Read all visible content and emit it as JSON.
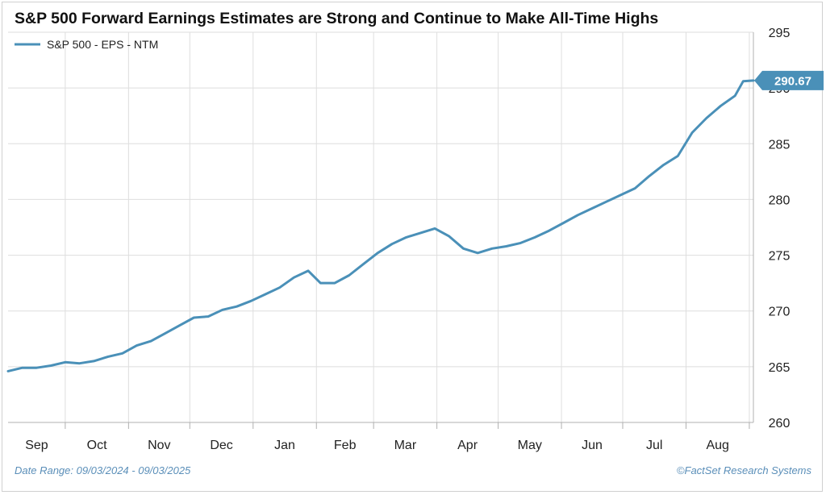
{
  "chart_data": {
    "type": "line",
    "title": "S&P 500 Forward Earnings Estimates are Strong and Continue to Make All-Time Highs",
    "xlabel": "",
    "ylabel": "",
    "ylim": [
      260,
      295
    ],
    "xlim": [
      "2024-09-03",
      "2025-09-03"
    ],
    "y_ticks": [
      260,
      265,
      270,
      275,
      280,
      285,
      290,
      295
    ],
    "y_axis_position": "right",
    "grid": true,
    "legend": "top-left",
    "months": [
      {
        "label": "Sep",
        "start": "2024-09-01"
      },
      {
        "label": "Oct",
        "start": "2024-10-01"
      },
      {
        "label": "Nov",
        "start": "2024-11-01"
      },
      {
        "label": "Dec",
        "start": "2024-12-01"
      },
      {
        "label": "Jan",
        "start": "2025-01-01"
      },
      {
        "label": "Feb",
        "start": "2025-02-01"
      },
      {
        "label": "Mar",
        "start": "2025-03-01"
      },
      {
        "label": "Apr",
        "start": "2025-04-01"
      },
      {
        "label": "May",
        "start": "2025-05-01"
      },
      {
        "label": "Jun",
        "start": "2025-06-01"
      },
      {
        "label": "Jul",
        "start": "2025-07-01"
      },
      {
        "label": "Aug",
        "start": "2025-08-01"
      },
      {
        "label": "",
        "start": "2025-09-01"
      }
    ],
    "series": [
      {
        "name": "S&P 500 - EPS - NTM",
        "color": "#4a90b8",
        "last_value_label": "290.67",
        "points": [
          [
            "2024-09-03",
            264.6
          ],
          [
            "2024-09-10",
            264.9
          ],
          [
            "2024-09-17",
            264.9
          ],
          [
            "2024-09-24",
            265.1
          ],
          [
            "2024-10-01",
            265.4
          ],
          [
            "2024-10-08",
            265.3
          ],
          [
            "2024-10-15",
            265.5
          ],
          [
            "2024-10-22",
            265.9
          ],
          [
            "2024-10-29",
            266.2
          ],
          [
            "2024-11-05",
            266.9
          ],
          [
            "2024-11-12",
            267.3
          ],
          [
            "2024-11-19",
            268.0
          ],
          [
            "2024-11-26",
            268.7
          ],
          [
            "2024-12-03",
            269.4
          ],
          [
            "2024-12-10",
            269.5
          ],
          [
            "2024-12-17",
            270.1
          ],
          [
            "2024-12-24",
            270.4
          ],
          [
            "2024-12-31",
            270.9
          ],
          [
            "2025-01-07",
            271.5
          ],
          [
            "2025-01-14",
            272.1
          ],
          [
            "2025-01-21",
            273.0
          ],
          [
            "2025-01-28",
            273.6
          ],
          [
            "2025-02-03",
            272.5
          ],
          [
            "2025-02-10",
            272.5
          ],
          [
            "2025-02-17",
            273.2
          ],
          [
            "2025-02-24",
            274.2
          ],
          [
            "2025-03-03",
            275.2
          ],
          [
            "2025-03-10",
            276.0
          ],
          [
            "2025-03-17",
            276.6
          ],
          [
            "2025-03-24",
            277.0
          ],
          [
            "2025-03-31",
            277.4
          ],
          [
            "2025-04-07",
            276.7
          ],
          [
            "2025-04-14",
            275.6
          ],
          [
            "2025-04-21",
            275.2
          ],
          [
            "2025-04-28",
            275.6
          ],
          [
            "2025-05-05",
            275.8
          ],
          [
            "2025-05-12",
            276.1
          ],
          [
            "2025-05-19",
            276.6
          ],
          [
            "2025-05-26",
            277.2
          ],
          [
            "2025-06-02",
            277.9
          ],
          [
            "2025-06-09",
            278.6
          ],
          [
            "2025-06-16",
            279.2
          ],
          [
            "2025-06-23",
            279.8
          ],
          [
            "2025-06-30",
            280.4
          ],
          [
            "2025-07-07",
            281.0
          ],
          [
            "2025-07-14",
            282.1
          ],
          [
            "2025-07-21",
            283.1
          ],
          [
            "2025-07-28",
            283.9
          ],
          [
            "2025-08-04",
            286.0
          ],
          [
            "2025-08-11",
            287.3
          ],
          [
            "2025-08-18",
            288.4
          ],
          [
            "2025-08-25",
            289.3
          ],
          [
            "2025-08-29",
            290.6
          ],
          [
            "2025-09-03",
            290.67
          ]
        ]
      }
    ]
  },
  "footer": {
    "date_range": "Date Range: 09/03/2024 - 09/03/2025",
    "source": "©FactSet Research Systems"
  }
}
